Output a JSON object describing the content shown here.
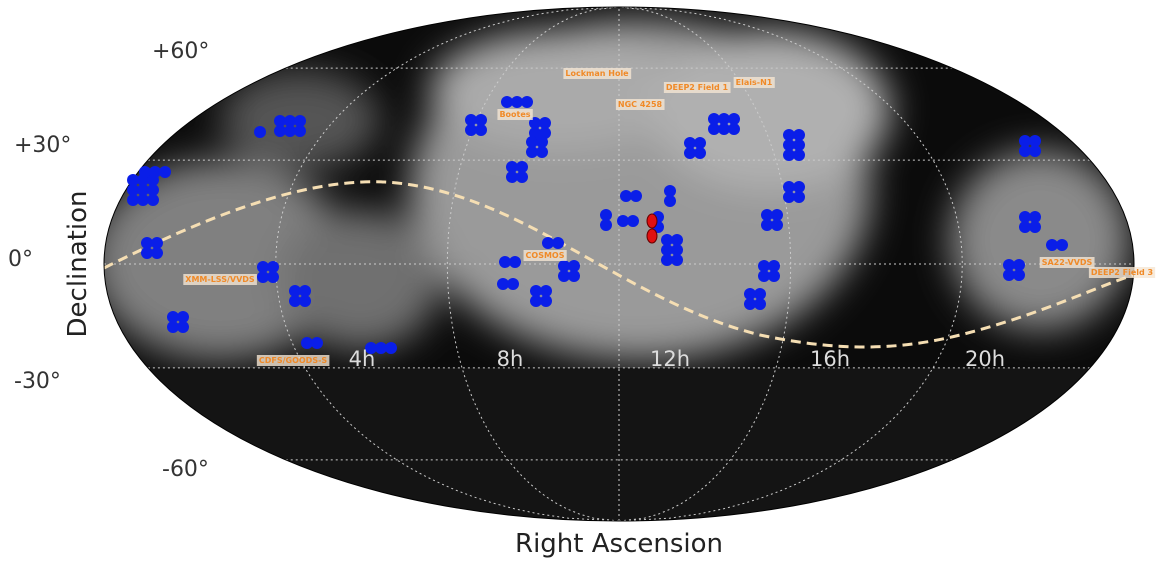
{
  "axes": {
    "x_label": "Right Ascension",
    "y_label": "Declination"
  },
  "dec_ticks": [
    "+60°",
    "+30°",
    "0°",
    "-30°",
    "-60°"
  ],
  "ra_ticks": [
    "4h",
    "8h",
    "12h",
    "16h",
    "20h"
  ],
  "fields": [
    "Lockman Hole",
    "DEEP2 Field 1",
    "Elais-N1",
    "NGC 4258",
    "Bootes",
    "XMM-LSS/VVDS",
    "COSMOS",
    "CDFS/GOODS-S",
    "SA22-VVDS",
    "DEEP2 Field 3"
  ]
}
